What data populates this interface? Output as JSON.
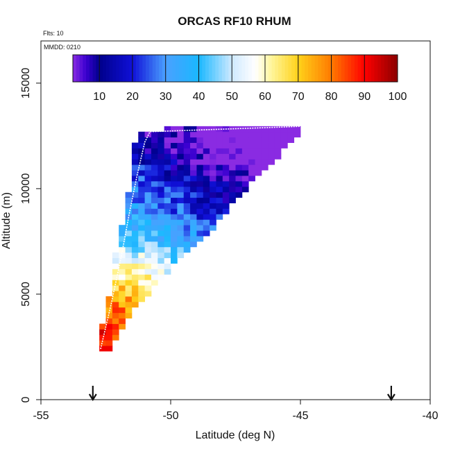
{
  "chart_data": {
    "type": "heatmap",
    "title": "ORCAS RF10 RHUM",
    "annotations": {
      "flights": "Flts: 10",
      "date": "MMDD: 0210"
    },
    "xlabel": "Latitude (deg N)",
    "ylabel": "Altitude (m)",
    "xlim": [
      -55,
      -40
    ],
    "ylim": [
      0,
      17000
    ],
    "x_ticks": [
      -55,
      -50,
      -45,
      -40
    ],
    "x_tick_labels": [
      "-55",
      "-50",
      "-45",
      "-40"
    ],
    "y_ticks": [
      0,
      5000,
      10000,
      15000
    ],
    "y_tick_labels": [
      "0",
      "5000",
      "10000",
      "15000"
    ],
    "colorbar": {
      "min": 2,
      "max": 100,
      "ticks": [
        10,
        20,
        30,
        40,
        50,
        60,
        70,
        80,
        90,
        100
      ],
      "tick_labels": [
        "10",
        "20",
        "30",
        "40",
        "50",
        "60",
        "70",
        "80",
        "90",
        "100"
      ],
      "stops": [
        {
          "v": 2,
          "c": "#8a2be2"
        },
        {
          "v": 6,
          "c": "#3a00d0"
        },
        {
          "v": 10,
          "c": "#00008b"
        },
        {
          "v": 20,
          "c": "#1010d8"
        },
        {
          "v": 30,
          "c": "#4aa0ff"
        },
        {
          "v": 40,
          "c": "#1ab8ff"
        },
        {
          "v": 50,
          "c": "#cfe9ff"
        },
        {
          "v": 57,
          "c": "#ffffff"
        },
        {
          "v": 62,
          "c": "#fff59a"
        },
        {
          "v": 70,
          "c": "#ffd21a"
        },
        {
          "v": 80,
          "c": "#ff7a00"
        },
        {
          "v": 90,
          "c": "#ff0000"
        },
        {
          "v": 100,
          "c": "#8b0000"
        }
      ]
    },
    "arrows_at_latitude": [
      -53,
      -41.5
    ],
    "flight_track": [
      {
        "lat": -52.7,
        "alt": 2400
      },
      {
        "lat": -52.3,
        "alt": 4500
      },
      {
        "lat": -51.9,
        "alt": 6800
      },
      {
        "lat": -51.6,
        "alt": 8800
      },
      {
        "lat": -51.3,
        "alt": 10600
      },
      {
        "lat": -51.0,
        "alt": 12200
      },
      {
        "lat": -50.8,
        "alt": 12700
      },
      {
        "lat": -45.0,
        "alt": 12950
      }
    ],
    "field": {
      "lat_step": 0.25,
      "alt_step": 260,
      "alt_min": 2300,
      "alt_max": 12900,
      "left_edge": [
        {
          "alt": 2300,
          "lat": -52.75
        },
        {
          "alt": 4500,
          "lat": -52.3
        },
        {
          "alt": 6800,
          "lat": -52.05
        },
        {
          "alt": 9000,
          "lat": -51.6
        },
        {
          "alt": 11500,
          "lat": -51.3
        },
        {
          "alt": 12700,
          "lat": -51.2
        },
        {
          "alt": 12900,
          "lat": -49.5
        }
      ],
      "right_edge": [
        {
          "alt": 2300,
          "lat": -52.45
        },
        {
          "alt": 4000,
          "lat": -51.7
        },
        {
          "alt": 6000,
          "lat": -50.3
        },
        {
          "alt": 8000,
          "lat": -48.6
        },
        {
          "alt": 10000,
          "lat": -47.2
        },
        {
          "alt": 12000,
          "lat": -45.6
        },
        {
          "alt": 12900,
          "lat": -45.0
        }
      ],
      "rh_profile": [
        {
          "alt": 2300,
          "rh": 92
        },
        {
          "alt": 3500,
          "rh": 86
        },
        {
          "alt": 4500,
          "rh": 78
        },
        {
          "alt": 5500,
          "rh": 68
        },
        {
          "alt": 6500,
          "rh": 58
        },
        {
          "alt": 7500,
          "rh": 47
        },
        {
          "alt": 8500,
          "rh": 36
        },
        {
          "alt": 9500,
          "rh": 30
        },
        {
          "alt": 10500,
          "rh": 24
        },
        {
          "alt": 11500,
          "rh": 16
        },
        {
          "alt": 12400,
          "rh": 10
        },
        {
          "alt": 12900,
          "rh": 5
        }
      ],
      "band_gradient_rh_per_deg_lat": -4.5
    }
  }
}
